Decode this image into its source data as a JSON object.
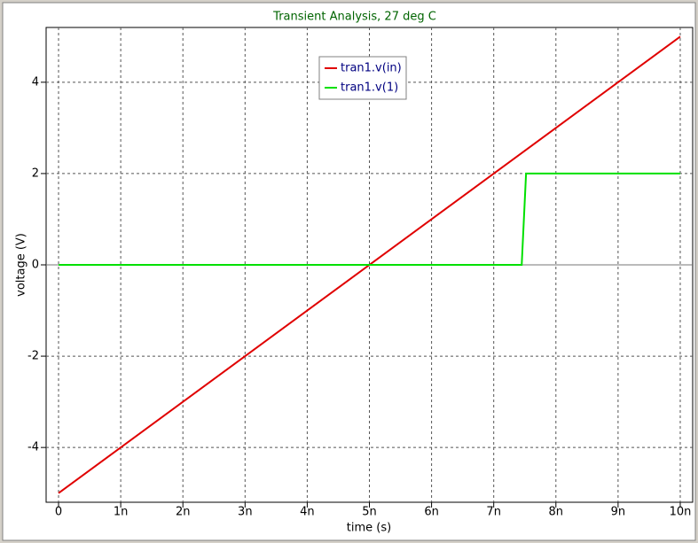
{
  "chart_data": {
    "type": "line",
    "title": "Transient Analysis, 27 deg C",
    "x_label": "time (s)",
    "y_label": "voltage (V)",
    "xlim": [
      -2e-10,
      1.02e-08
    ],
    "ylim": [
      -5.2,
      5.2
    ],
    "xticks": [
      {
        "value": 0,
        "label": "0"
      },
      {
        "value": 1e-09,
        "label": "1n"
      },
      {
        "value": 2e-09,
        "label": "2n"
      },
      {
        "value": 3e-09,
        "label": "3n"
      },
      {
        "value": 4e-09,
        "label": "4n"
      },
      {
        "value": 5e-09,
        "label": "5n"
      },
      {
        "value": 6e-09,
        "label": "6n"
      },
      {
        "value": 7e-09,
        "label": "7n"
      },
      {
        "value": 8e-09,
        "label": "8n"
      },
      {
        "value": 9e-09,
        "label": "9n"
      },
      {
        "value": 1e-08,
        "label": "10n"
      }
    ],
    "yticks": [
      -4,
      -2,
      0,
      2,
      4
    ],
    "grid": true,
    "legend": "top",
    "series": [
      {
        "name": "tran1.v(in)",
        "color": "#e00000",
        "x": [
          0,
          1e-08
        ],
        "values": [
          -5,
          5
        ]
      },
      {
        "name": "tran1.v(1)",
        "color": "#00e000",
        "x": [
          0,
          7.45e-09,
          7.52e-09,
          1e-08
        ],
        "values": [
          0,
          0,
          2,
          2
        ]
      }
    ]
  }
}
